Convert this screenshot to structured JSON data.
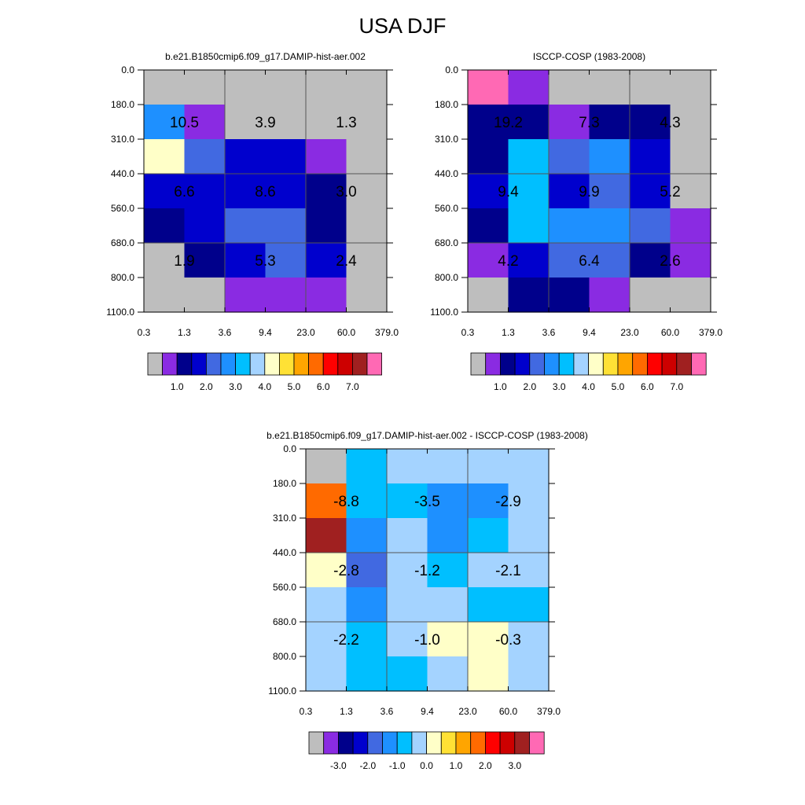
{
  "title": "USA DJF",
  "colors": {
    "missing": "#bebebe",
    "palette": [
      "#bebebe",
      "#8a2be2",
      "#00008b",
      "#0000cd",
      "#4169e1",
      "#1e90ff",
      "#00bfff",
      "#a4d3ff",
      "#ffffc8",
      "#ffe135",
      "#ffa500",
      "#ff6a00",
      "#ff0000",
      "#cd0000",
      "#a02020",
      "#ff69b4"
    ]
  },
  "chart_data": [
    {
      "type": "heatmap",
      "title": "b.e21.B1850cmip6.f09_g17.DAMIP-hist-aer.002",
      "x_tick_labels": [
        "0.3",
        "1.3",
        "3.6",
        "9.4",
        "23.0",
        "60.0",
        "379.0"
      ],
      "y_tick_labels": [
        "0.0",
        "180.0",
        "310.0",
        "440.0",
        "560.0",
        "680.0",
        "800.0",
        "1100.0"
      ],
      "y_reversed": true,
      "cells_color_index": [
        [
          0,
          0,
          0,
          0,
          0,
          0
        ],
        [
          5,
          1,
          0,
          0,
          0,
          0
        ],
        [
          8,
          4,
          3,
          3,
          1,
          0
        ],
        [
          3,
          3,
          3,
          3,
          2,
          0
        ],
        [
          2,
          3,
          4,
          4,
          2,
          0
        ],
        [
          0,
          2,
          3,
          4,
          3,
          0
        ],
        [
          0,
          0,
          1,
          1,
          1,
          0
        ]
      ],
      "block_labels": [
        {
          "x_block": 0,
          "y_block": 0,
          "text": "10.5"
        },
        {
          "x_block": 1,
          "y_block": 0,
          "text": "3.9"
        },
        {
          "x_block": 2,
          "y_block": 0,
          "text": "1.3"
        },
        {
          "x_block": 0,
          "y_block": 1,
          "text": "6.6"
        },
        {
          "x_block": 1,
          "y_block": 1,
          "text": "8.6"
        },
        {
          "x_block": 2,
          "y_block": 1,
          "text": "3.0"
        },
        {
          "x_block": 0,
          "y_block": 2,
          "text": "1.9"
        },
        {
          "x_block": 1,
          "y_block": 2,
          "text": "5.3"
        },
        {
          "x_block": 2,
          "y_block": 2,
          "text": "2.4"
        }
      ],
      "colorbar": {
        "color_indices": [
          0,
          1,
          2,
          3,
          4,
          5,
          6,
          7,
          8,
          9,
          10,
          11,
          12,
          13,
          14,
          15
        ],
        "tick_labels": [
          "1.0",
          "2.0",
          "3.0",
          "4.0",
          "5.0",
          "6.0",
          "7.0"
        ],
        "first_label_box": 2
      }
    },
    {
      "type": "heatmap",
      "title": "ISCCP-COSP (1983-2008)",
      "x_tick_labels": [
        "0.3",
        "1.3",
        "3.6",
        "9.4",
        "23.0",
        "60.0",
        "379.0"
      ],
      "y_tick_labels": [
        "0.0",
        "180.0",
        "310.0",
        "440.0",
        "560.0",
        "680.0",
        "800.0",
        "1100.0"
      ],
      "y_reversed": true,
      "cells_color_index": [
        [
          15,
          1,
          0,
          0,
          0,
          0
        ],
        [
          2,
          2,
          1,
          2,
          2,
          0
        ],
        [
          2,
          6,
          4,
          5,
          3,
          0
        ],
        [
          3,
          6,
          3,
          4,
          3,
          0
        ],
        [
          2,
          6,
          5,
          5,
          4,
          1
        ],
        [
          1,
          3,
          4,
          4,
          2,
          1
        ],
        [
          0,
          2,
          2,
          1,
          0,
          0
        ]
      ],
      "block_labels": [
        {
          "x_block": 0,
          "y_block": 0,
          "text": "19.2"
        },
        {
          "x_block": 1,
          "y_block": 0,
          "text": "7.3"
        },
        {
          "x_block": 2,
          "y_block": 0,
          "text": "4.3"
        },
        {
          "x_block": 0,
          "y_block": 1,
          "text": "9.4"
        },
        {
          "x_block": 1,
          "y_block": 1,
          "text": "9.9"
        },
        {
          "x_block": 2,
          "y_block": 1,
          "text": "5.2"
        },
        {
          "x_block": 0,
          "y_block": 2,
          "text": "4.2"
        },
        {
          "x_block": 1,
          "y_block": 2,
          "text": "6.4"
        },
        {
          "x_block": 2,
          "y_block": 2,
          "text": "2.6"
        }
      ],
      "colorbar": {
        "color_indices": [
          0,
          1,
          2,
          3,
          4,
          5,
          6,
          7,
          8,
          9,
          10,
          11,
          12,
          13,
          14,
          15
        ],
        "tick_labels": [
          "1.0",
          "2.0",
          "3.0",
          "4.0",
          "5.0",
          "6.0",
          "7.0"
        ],
        "first_label_box": 2
      }
    },
    {
      "type": "heatmap",
      "title": "b.e21.B1850cmip6.f09_g17.DAMIP-hist-aer.002 - ISCCP-COSP (1983-2008)",
      "x_tick_labels": [
        "0.3",
        "1.3",
        "3.6",
        "9.4",
        "23.0",
        "60.0",
        "379.0"
      ],
      "y_tick_labels": [
        "0.0",
        "180.0",
        "310.0",
        "440.0",
        "560.0",
        "680.0",
        "800.0",
        "1100.0"
      ],
      "y_reversed": true,
      "cells_color_index": [
        [
          0,
          6,
          7,
          7,
          7,
          7
        ],
        [
          11,
          6,
          6,
          5,
          5,
          7
        ],
        [
          14,
          5,
          7,
          5,
          6,
          7
        ],
        [
          8,
          4,
          7,
          6,
          7,
          7
        ],
        [
          7,
          5,
          7,
          7,
          6,
          6
        ],
        [
          7,
          6,
          7,
          8,
          8,
          7
        ],
        [
          7,
          6,
          6,
          7,
          8,
          7
        ]
      ],
      "block_labels": [
        {
          "x_block": 0,
          "y_block": 0,
          "text": "-8.8"
        },
        {
          "x_block": 1,
          "y_block": 0,
          "text": "-3.5"
        },
        {
          "x_block": 2,
          "y_block": 0,
          "text": "-2.9"
        },
        {
          "x_block": 0,
          "y_block": 1,
          "text": "-2.8"
        },
        {
          "x_block": 1,
          "y_block": 1,
          "text": "-1.2"
        },
        {
          "x_block": 2,
          "y_block": 1,
          "text": "-2.1"
        },
        {
          "x_block": 0,
          "y_block": 2,
          "text": "-2.2"
        },
        {
          "x_block": 1,
          "y_block": 2,
          "text": "-1.0"
        },
        {
          "x_block": 2,
          "y_block": 2,
          "text": "-0.3"
        }
      ],
      "colorbar": {
        "color_indices": [
          0,
          1,
          2,
          3,
          4,
          5,
          6,
          7,
          8,
          9,
          10,
          11,
          12,
          13,
          14,
          15
        ],
        "tick_labels": [
          "-3.0",
          "-2.0",
          "-1.0",
          "0.0",
          "1.0",
          "2.0",
          "3.0"
        ],
        "first_label_box": 2
      }
    }
  ]
}
